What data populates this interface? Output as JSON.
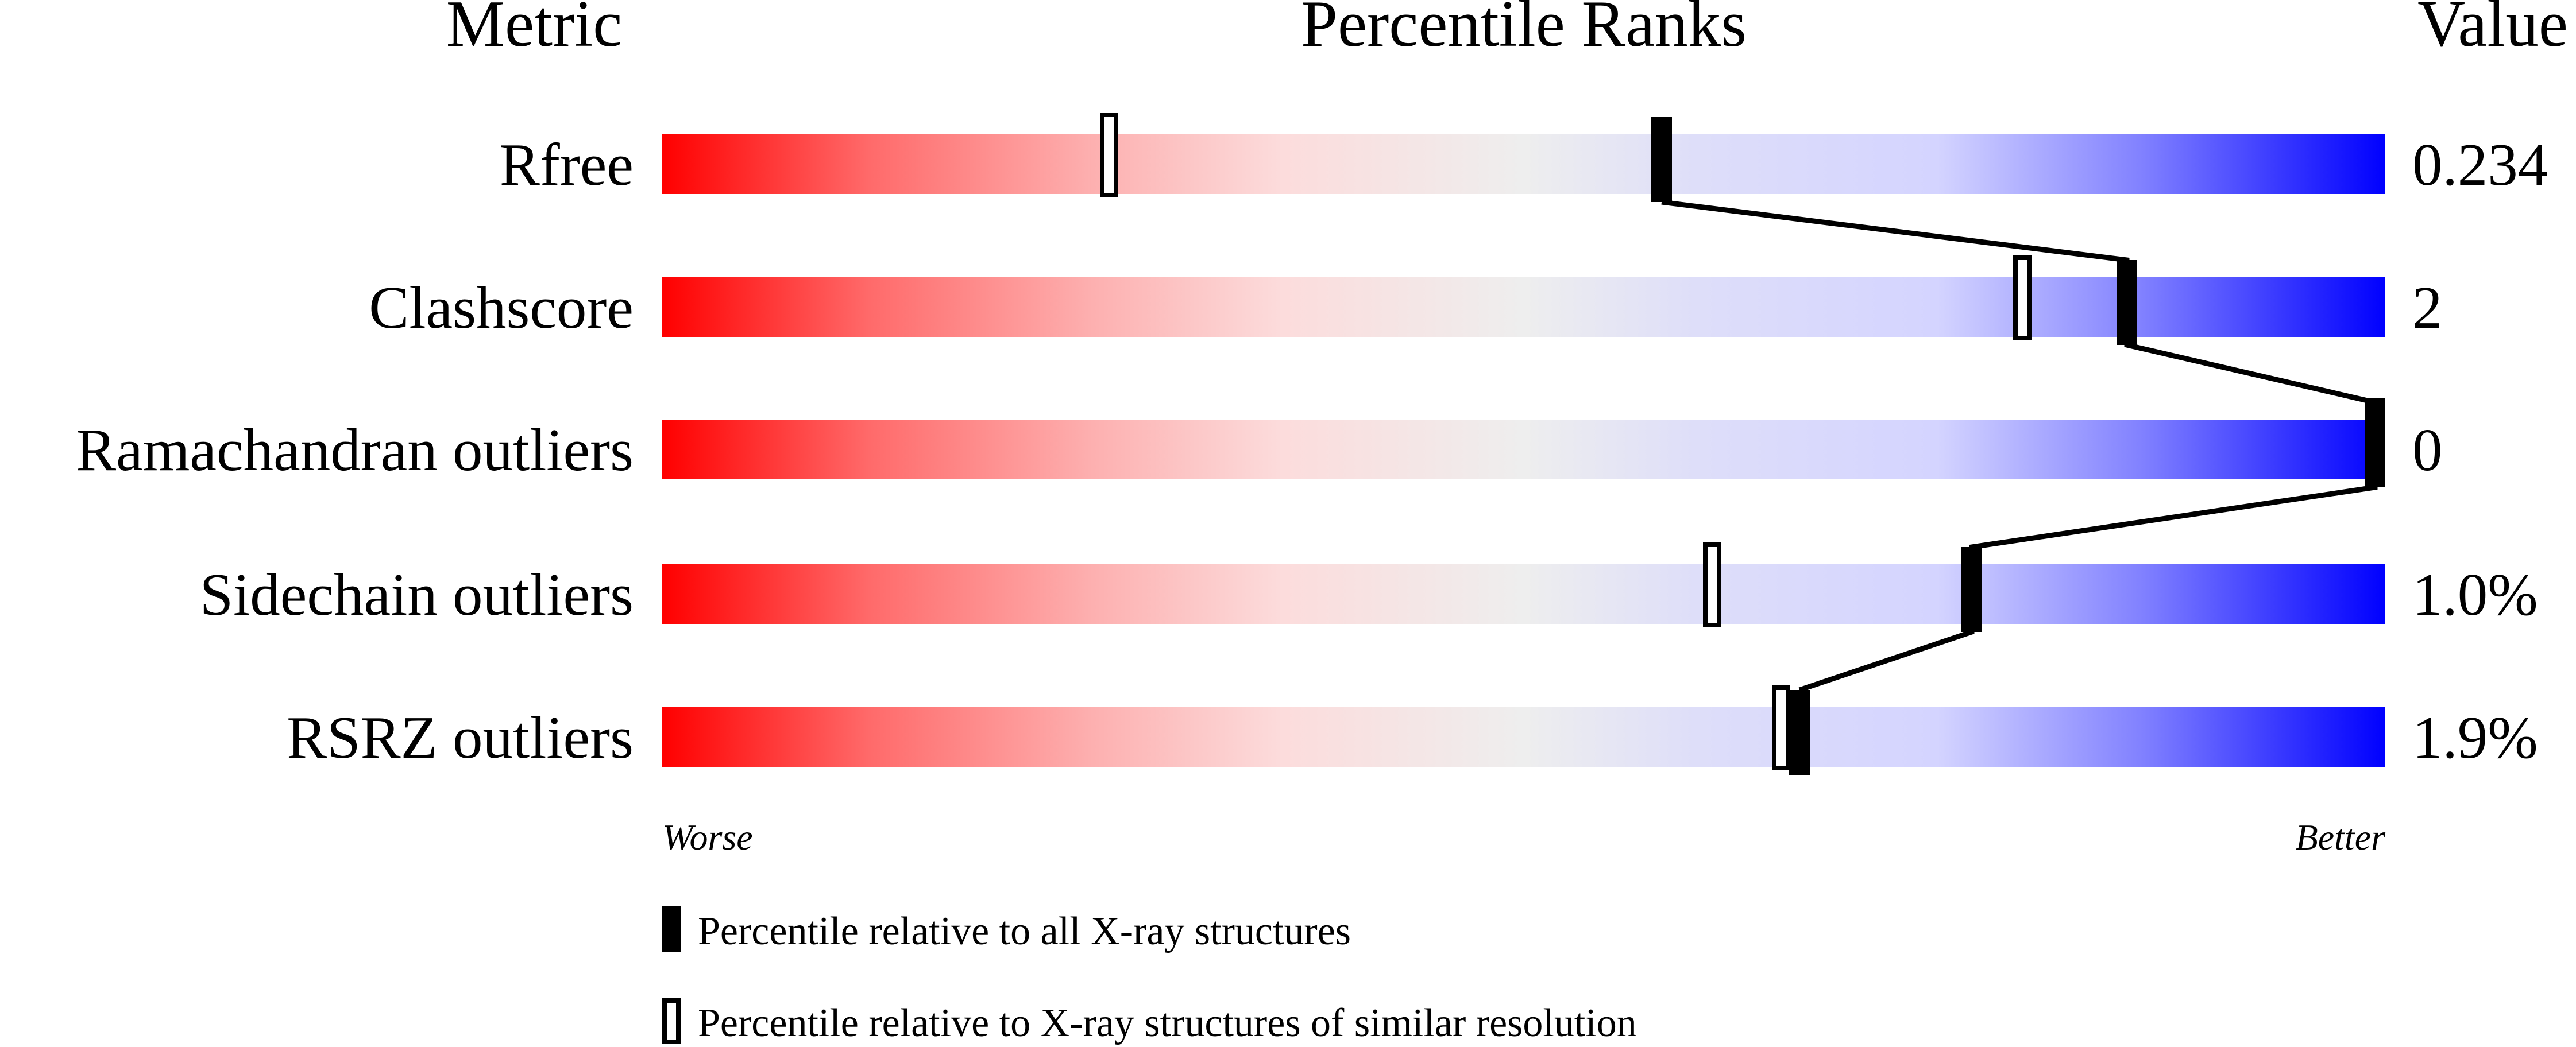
{
  "chart_data": {
    "type": "percentile-bars",
    "headers": {
      "metric": "Metric",
      "ranks": "Percentile Ranks",
      "value": "Value"
    },
    "xlim": [
      0,
      100
    ],
    "scale_labels": {
      "low": "Worse",
      "high": "Better"
    },
    "colors": {
      "worse": "#ff0000",
      "middle": "#eeeeee",
      "better": "#0000ff",
      "marker": "#000000"
    },
    "rows": [
      {
        "metric": "Rfree",
        "value": "0.234",
        "percentile_all": 58,
        "percentile_similar": 26
      },
      {
        "metric": "Clashscore",
        "value": "2",
        "percentile_all": 85,
        "percentile_similar": 79
      },
      {
        "metric": "Ramachandran outliers",
        "value": "0",
        "percentile_all": 100,
        "percentile_similar": 100
      },
      {
        "metric": "Sidechain outliers",
        "value": "1.0%",
        "percentile_all": 76,
        "percentile_similar": 61
      },
      {
        "metric": "RSRZ outliers",
        "value": "1.9%",
        "percentile_all": 66,
        "percentile_similar": 65
      }
    ],
    "legend": [
      {
        "marker": "filled",
        "label": "Percentile relative to all X-ray structures"
      },
      {
        "marker": "hollow",
        "label": "Percentile relative to X-ray structures of similar resolution"
      }
    ]
  }
}
